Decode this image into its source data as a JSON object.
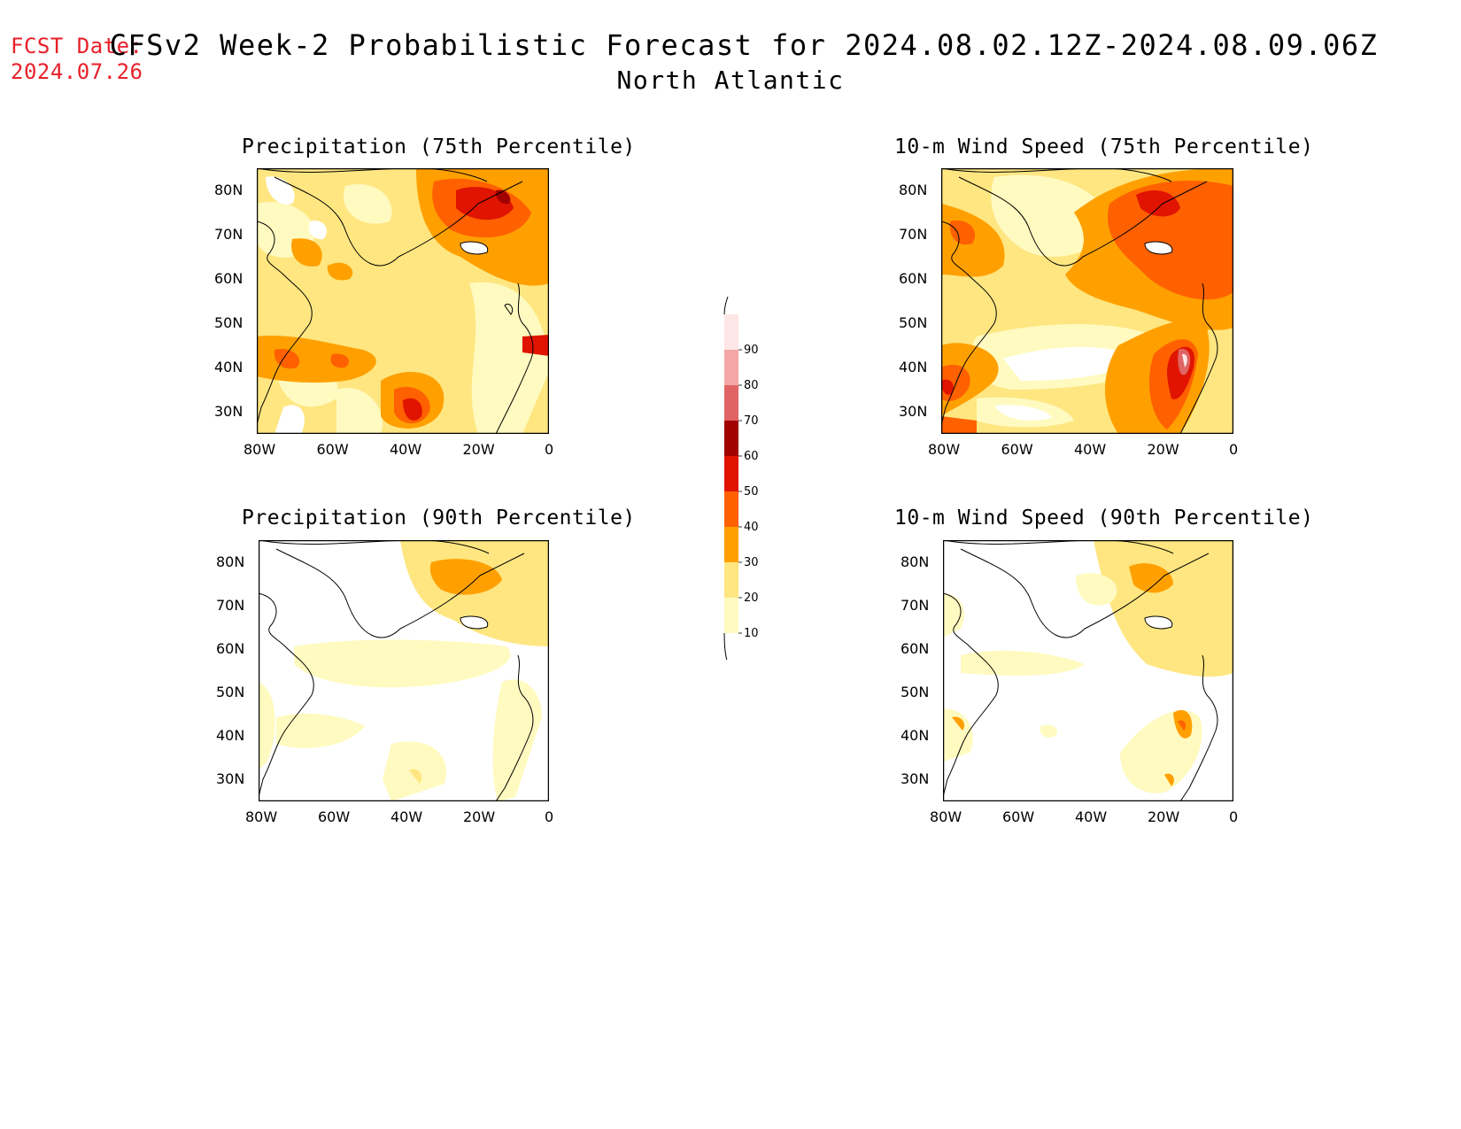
{
  "header": {
    "fcst_label": "FCST Date:",
    "fcst_date": "2024.07.26",
    "title": "CFSv2 Week-2 Probabilistic Forecast for 2024.08.02.12Z-2024.08.09.06Z",
    "region": "North Atlantic"
  },
  "panels": [
    {
      "title": "Precipitation (75th Percentile)"
    },
    {
      "title": "10-m Wind Speed (75th Percentile)"
    },
    {
      "title": "Precipitation (90th Percentile)"
    },
    {
      "title": "10-m Wind Speed (90th Percentile)"
    }
  ],
  "axes": {
    "lat_labels": [
      "80N",
      "70N",
      "60N",
      "50N",
      "40N",
      "30N"
    ],
    "lon_labels": [
      "80W",
      "60W",
      "40W",
      "20W",
      "0"
    ]
  },
  "colorbar": {
    "levels": [
      "10",
      "20",
      "30",
      "40",
      "50",
      "60",
      "70",
      "80",
      "90"
    ],
    "colors": [
      "#fffac0",
      "#ffe680",
      "#ffa000",
      "#ff6000",
      "#e01400",
      "#a00000",
      "#e06464",
      "#f4a6a6",
      "#ffe6e6"
    ]
  }
}
